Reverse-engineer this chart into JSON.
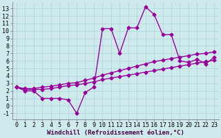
{
  "background_color": "#ceeaed",
  "grid_color": "#b0d8dc",
  "line_color": "#990099",
  "marker": "D",
  "markersize": 2.5,
  "linewidth": 1.0,
  "xlabel": "Windchill (Refroidissement éolien,°C)",
  "xlabel_fontsize": 6.5,
  "tick_fontsize": 6.0,
  "xlim": [
    -0.5,
    23.5
  ],
  "ylim": [
    -1.8,
    13.8
  ],
  "yticks": [
    -1,
    0,
    1,
    2,
    3,
    4,
    5,
    6,
    7,
    8,
    9,
    10,
    11,
    12,
    13
  ],
  "xticks": [
    0,
    1,
    2,
    3,
    4,
    5,
    6,
    7,
    8,
    9,
    10,
    11,
    12,
    13,
    14,
    15,
    16,
    17,
    18,
    19,
    20,
    21,
    22,
    23
  ],
  "line1_x": [
    0,
    1,
    2,
    3,
    4,
    5,
    6,
    7,
    8,
    9,
    10,
    11,
    12,
    13,
    14,
    15,
    16,
    17,
    18,
    19,
    20,
    21,
    22,
    23
  ],
  "line1_y": [
    2.5,
    2.0,
    2.0,
    1.0,
    1.0,
    1.0,
    0.8,
    -1.0,
    1.8,
    2.5,
    10.3,
    10.3,
    7.0,
    10.4,
    10.4,
    13.2,
    12.2,
    9.5,
    9.5,
    6.0,
    5.8,
    6.2,
    5.6,
    6.5
  ],
  "line2_x": [
    0,
    1,
    2,
    3,
    4,
    5,
    6,
    7,
    8,
    9,
    10,
    11,
    12,
    13,
    14,
    15,
    16,
    17,
    18,
    19,
    20,
    21,
    22,
    23
  ],
  "line2_y": [
    2.5,
    2.3,
    2.3,
    2.5,
    2.6,
    2.8,
    3.0,
    3.1,
    3.4,
    3.7,
    4.1,
    4.4,
    4.7,
    5.0,
    5.3,
    5.6,
    5.9,
    6.1,
    6.3,
    6.5,
    6.7,
    6.9,
    7.0,
    7.2
  ],
  "line3_x": [
    0,
    1,
    2,
    3,
    4,
    5,
    6,
    7,
    8,
    9,
    10,
    11,
    12,
    13,
    14,
    15,
    16,
    17,
    18,
    19,
    20,
    21,
    22,
    23
  ],
  "line3_y": [
    2.5,
    2.2,
    2.2,
    2.2,
    2.3,
    2.5,
    2.7,
    2.8,
    3.0,
    3.2,
    3.5,
    3.7,
    3.9,
    4.1,
    4.3,
    4.5,
    4.7,
    4.9,
    5.1,
    5.3,
    5.5,
    5.7,
    5.9,
    6.1
  ]
}
